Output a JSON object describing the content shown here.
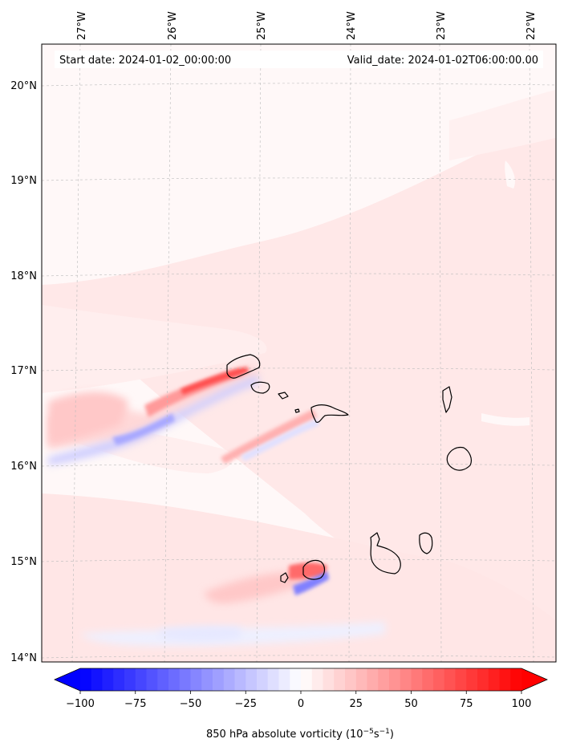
{
  "header": {
    "start_date": "Start date: 2024-01-02_00:00:00",
    "valid_date": "Valid_date: 2024-01-02T06:00:00.00"
  },
  "map": {
    "lon_labels": [
      "27°W",
      "26°W",
      "25°W",
      "24°W",
      "23°W",
      "22°W"
    ],
    "lat_labels": [
      "20°N",
      "19°N",
      "18°N",
      "17°N",
      "16°N",
      "15°N",
      "14°N"
    ],
    "gridlines": true,
    "field": "850 hPa absolute vorticity",
    "colormap": "bwr",
    "extend": "both",
    "islands": [
      "Santo Antão",
      "São Vicente",
      "Santa Luzia",
      "São Nicolau",
      "Sal",
      "Boa Vista",
      "Fogo",
      "Brava",
      "Santiago",
      "Maio"
    ]
  },
  "colorbar": {
    "min": -100,
    "max": 100,
    "ticks": [
      "−100",
      "−75",
      "−50",
      "−25",
      "0",
      "25",
      "50",
      "75",
      "100"
    ],
    "label": "850 hPa absolute vorticity",
    "unit_text": "(10",
    "unit_exp1": "−5",
    "unit_mid": "s",
    "unit_exp2": "−1",
    "unit_close": ")",
    "min_color": "#0000ff",
    "mid_color": "#ffffff",
    "max_color": "#ff0000"
  }
}
